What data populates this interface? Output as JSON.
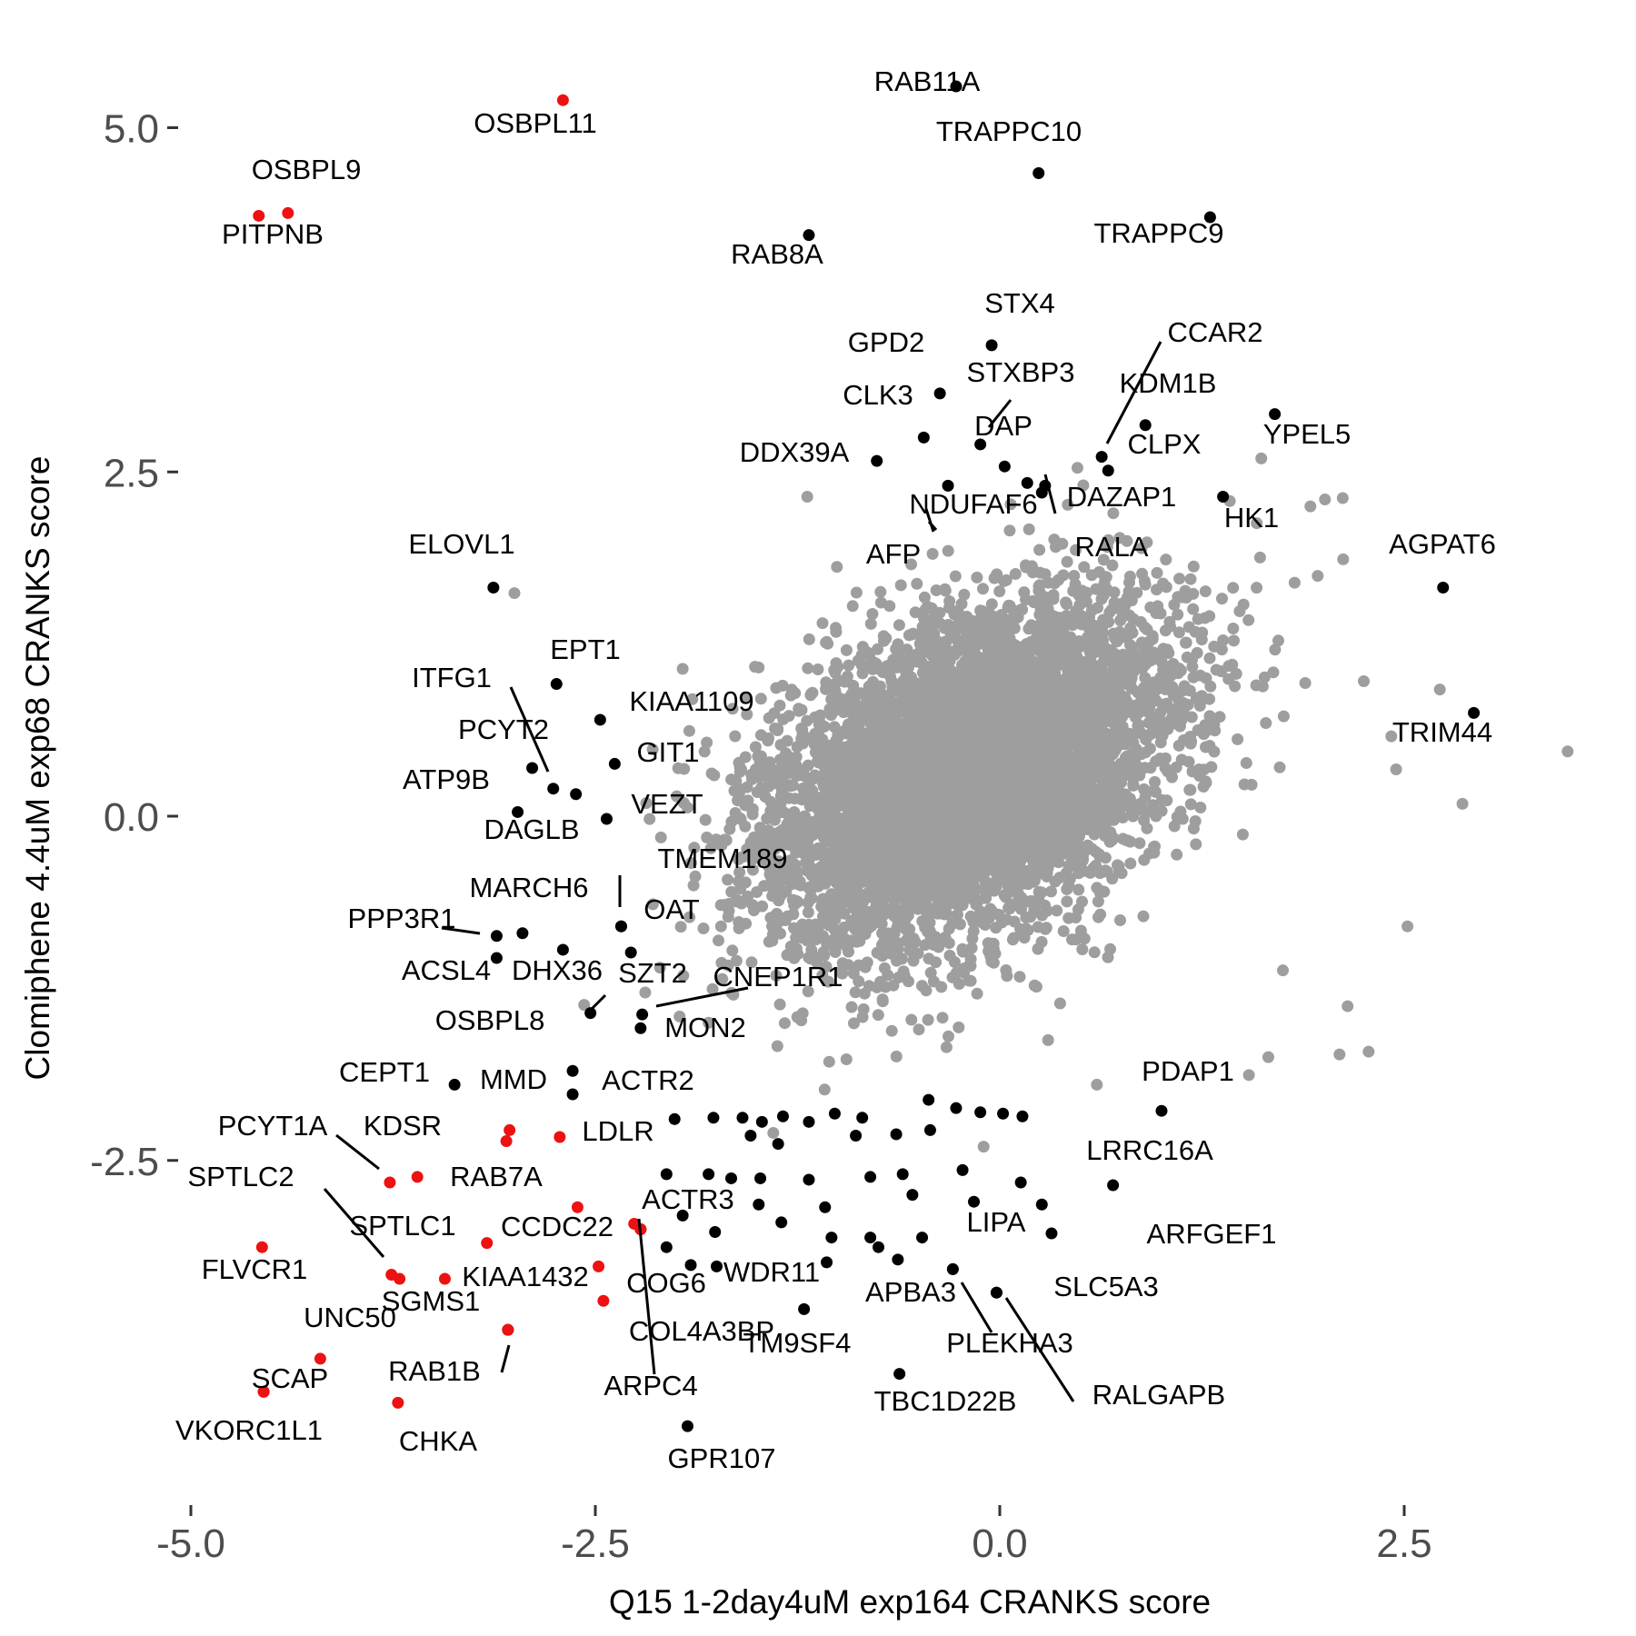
{
  "chart_data": {
    "type": "scatter",
    "xlabel": "Q15 1-2day4uM exp164 CRANKS score",
    "ylabel": "Clomiphene 4.4uM exp68 CRANKS score",
    "xlim": [
      -5.1,
      3.7
    ],
    "ylim": [
      -5.0,
      5.5
    ],
    "x_ticks": [
      -5.0,
      -2.5,
      0.0,
      2.5
    ],
    "x_tick_labels": [
      "-5.0",
      "-2.5",
      "0.0",
      "2.5"
    ],
    "y_ticks": [
      5.0,
      2.5,
      0.0,
      -2.5
    ],
    "y_tick_labels": [
      "5.0",
      "2.5",
      "0.0",
      "-2.5"
    ],
    "grid": false,
    "legend": "none",
    "colors": {
      "background": "#ffffff",
      "highlight": "#ee1111",
      "labeled": "#000000",
      "other": "#9e9e9e",
      "tick": "#4d4d4d"
    },
    "series": [
      {
        "group": "highlighted",
        "color": "#ee1111",
        "points": [
          {
            "label": "OSBPL11",
            "x": -2.7,
            "y": 5.2
          },
          {
            "label": "OSBPL9",
            "x": -4.4,
            "y": 4.38
          },
          {
            "label": "PITPNB",
            "x": -4.58,
            "y": 4.36
          },
          {
            "label": "",
            "x": -3.03,
            "y": -2.28
          },
          {
            "label": "",
            "x": -3.05,
            "y": -2.36
          },
          {
            "label": "LDLR",
            "x": -2.72,
            "y": -2.33
          },
          {
            "label": "KDSR",
            "x": -3.6,
            "y": -2.62
          },
          {
            "label": "PCYT1A",
            "x": -3.77,
            "y": -2.66
          },
          {
            "label": "RAB7A",
            "x": -2.61,
            "y": -2.84
          },
          {
            "label": "ACTR3",
            "x": -2.26,
            "y": -2.96
          },
          {
            "label": "",
            "x": -2.22,
            "y": -3.0
          },
          {
            "label": "CCDC22",
            "x": -3.17,
            "y": -3.1
          },
          {
            "label": "FLVCR1",
            "x": -4.56,
            "y": -3.13
          },
          {
            "label": "KIAA1432",
            "x": -2.48,
            "y": -3.27
          },
          {
            "label": "SPTLC1",
            "x": -3.76,
            "y": -3.33
          },
          {
            "label": "SPTLC2",
            "x": -3.71,
            "y": -3.36
          },
          {
            "label": "SGMS1",
            "x": -3.43,
            "y": -3.36
          },
          {
            "label": "COG6",
            "x": -2.45,
            "y": -3.52
          },
          {
            "label": "COL4A3BP",
            "x": -3.04,
            "y": -3.73
          },
          {
            "label": "UNC50",
            "x": -4.2,
            "y": -3.94
          },
          {
            "label": "SCAP",
            "x": -4.55,
            "y": -4.18
          },
          {
            "label": "CHKA",
            "x": -3.72,
            "y": -4.26
          }
        ]
      },
      {
        "group": "labeled",
        "color": "#000000",
        "points": [
          {
            "label": "RAB11A",
            "x": -0.27,
            "y": 5.3
          },
          {
            "label": "TRAPPC10",
            "x": 0.24,
            "y": 4.67
          },
          {
            "label": "TRAPPC9",
            "x": 1.3,
            "y": 4.35
          },
          {
            "label": "RAB8A",
            "x": -1.18,
            "y": 4.22
          },
          {
            "label": "STX4",
            "x": -0.05,
            "y": 3.42
          },
          {
            "label": "GPD2",
            "x": -0.37,
            "y": 3.07
          },
          {
            "label": "YPEL5",
            "x": 1.7,
            "y": 2.92
          },
          {
            "label": "KDM1B",
            "x": 0.9,
            "y": 2.84
          },
          {
            "label": "CLK3",
            "x": -0.47,
            "y": 2.75
          },
          {
            "label": "DAP",
            "x": -0.12,
            "y": 2.7
          },
          {
            "label": "CCAR2",
            "x": 0.63,
            "y": 2.61
          },
          {
            "label": "DDX39A",
            "x": -0.76,
            "y": 2.58
          },
          {
            "label": "STXBP3",
            "x": 0.03,
            "y": 2.54
          },
          {
            "label": "CLPX",
            "x": 0.67,
            "y": 2.51
          },
          {
            "label": "NDUFAF6",
            "x": -0.32,
            "y": 2.4
          },
          {
            "label": "",
            "x": 0.17,
            "y": 2.42
          },
          {
            "label": "DAZAP1",
            "x": 0.28,
            "y": 2.4
          },
          {
            "label": "RALA",
            "x": 0.26,
            "y": 2.35
          },
          {
            "label": "HK1",
            "x": 1.38,
            "y": 2.32
          },
          {
            "label": "AGPAT6",
            "x": 2.74,
            "y": 1.66
          },
          {
            "label": "ELOVL1",
            "x": -3.13,
            "y": 1.66
          },
          {
            "label": "EPT1",
            "x": -2.74,
            "y": 0.96
          },
          {
            "label": "TRIM44",
            "x": 2.93,
            "y": 0.75
          },
          {
            "label": "KIAA1109",
            "x": -2.47,
            "y": 0.7
          },
          {
            "label": "GIT1",
            "x": -2.38,
            "y": 0.38
          },
          {
            "label": "PCYT2",
            "x": -2.89,
            "y": 0.35
          },
          {
            "label": "ITFG1",
            "x": -2.76,
            "y": 0.2
          },
          {
            "label": "ATP9B",
            "x": -2.62,
            "y": 0.16
          },
          {
            "label": "DAGLB",
            "x": -2.98,
            "y": 0.03
          },
          {
            "label": "VEZT",
            "x": -2.43,
            "y": -0.02
          },
          {
            "label": "PPP3R1",
            "x": -3.11,
            "y": -0.87
          },
          {
            "label": "MARCH6",
            "x": -2.95,
            "y": -0.85
          },
          {
            "label": "OAT",
            "x": -2.34,
            "y": -0.8
          },
          {
            "label": "TMEM189",
            "x": -2.34,
            "y": -0.8
          },
          {
            "label": "DHX36",
            "x": -2.7,
            "y": -0.97
          },
          {
            "label": "",
            "x": -2.28,
            "y": -0.99
          },
          {
            "label": "ACSL4",
            "x": -3.11,
            "y": -1.03
          },
          {
            "label": "SZT2",
            "x": -2.53,
            "y": -1.43
          },
          {
            "label": "CNEP1R1",
            "x": -2.21,
            "y": -1.44
          },
          {
            "label": "MON2",
            "x": -2.22,
            "y": -1.54
          },
          {
            "label": "OSBPL8",
            "x": -2.64,
            "y": -1.85
          },
          {
            "label": "CEPT1",
            "x": -3.37,
            "y": -1.95
          },
          {
            "label": "MMD",
            "x": -2.64,
            "y": -2.02
          },
          {
            "label": "PDAP1",
            "x": 1.0,
            "y": -2.14
          },
          {
            "label": "LRRC16A",
            "x": 0.7,
            "y": -2.68
          },
          {
            "label": "LIPA",
            "x": -0.16,
            "y": -2.8
          },
          {
            "label": "ARFGEF1",
            "x": 0.32,
            "y": -3.03
          },
          {
            "label": "WDR11",
            "x": -1.75,
            "y": -3.27
          },
          {
            "label": "APBA3",
            "x": -0.29,
            "y": -3.29
          },
          {
            "label": "SLC5A3",
            "x": -0.02,
            "y": -3.46
          },
          {
            "label": "RALGAPB",
            "x": -0.02,
            "y": -3.46
          },
          {
            "label": "PLEKHA3",
            "x": -0.29,
            "y": -3.29
          },
          {
            "label": "TM9SF4",
            "x": -1.21,
            "y": -3.58
          },
          {
            "label": "ARPC4",
            "x": -2.22,
            "y": -3.0
          },
          {
            "label": "RAB1B",
            "x": -3.04,
            "y": -3.73
          },
          {
            "label": "TBC1D22B",
            "x": -0.62,
            "y": -4.05
          },
          {
            "label": "GPR107",
            "x": -1.93,
            "y": -4.43
          },
          {
            "label": "VKORC1L1",
            "x": -4.55,
            "y": -4.18
          },
          {
            "label": "",
            "x": -2.01,
            "y": -2.2
          },
          {
            "label": "",
            "x": -1.77,
            "y": -2.19
          },
          {
            "label": "",
            "x": -1.59,
            "y": -2.19
          },
          {
            "label": "",
            "x": -1.47,
            "y": -2.22
          },
          {
            "label": "",
            "x": -1.34,
            "y": -2.18
          },
          {
            "label": "",
            "x": -1.18,
            "y": -2.22
          },
          {
            "label": "",
            "x": -1.02,
            "y": -2.16
          },
          {
            "label": "",
            "x": -0.85,
            "y": -2.19
          },
          {
            "label": "",
            "x": -0.44,
            "y": -2.06
          },
          {
            "label": "",
            "x": -0.27,
            "y": -2.12
          },
          {
            "label": "",
            "x": -0.12,
            "y": -2.15
          },
          {
            "label": "",
            "x": 0.02,
            "y": -2.16
          },
          {
            "label": "",
            "x": 0.14,
            "y": -2.18
          },
          {
            "label": "",
            "x": -1.54,
            "y": -2.32
          },
          {
            "label": "",
            "x": -1.37,
            "y": -2.38
          },
          {
            "label": "",
            "x": -0.89,
            "y": -2.32
          },
          {
            "label": "",
            "x": -0.64,
            "y": -2.31
          },
          {
            "label": "",
            "x": -0.43,
            "y": -2.28
          },
          {
            "label": "",
            "x": -1.8,
            "y": -2.6
          },
          {
            "label": "",
            "x": -1.66,
            "y": -2.63
          },
          {
            "label": "",
            "x": -1.48,
            "y": -2.63
          },
          {
            "label": "",
            "x": -1.18,
            "y": -2.64
          },
          {
            "label": "",
            "x": -0.8,
            "y": -2.62
          },
          {
            "label": "",
            "x": -0.6,
            "y": -2.6
          },
          {
            "label": "",
            "x": -0.23,
            "y": -2.57
          },
          {
            "label": "",
            "x": 0.13,
            "y": -2.66
          },
          {
            "label": "",
            "x": -2.06,
            "y": -2.6
          },
          {
            "label": "",
            "x": -1.49,
            "y": -2.82
          },
          {
            "label": "",
            "x": -1.08,
            "y": -2.84
          },
          {
            "label": "",
            "x": -0.54,
            "y": -2.75
          },
          {
            "label": "",
            "x": 0.26,
            "y": -2.82
          },
          {
            "label": "",
            "x": -1.96,
            "y": -2.9
          },
          {
            "label": "",
            "x": -1.35,
            "y": -2.95
          },
          {
            "label": "",
            "x": -1.04,
            "y": -3.06
          },
          {
            "label": "",
            "x": -0.8,
            "y": -3.06
          },
          {
            "label": "",
            "x": -0.48,
            "y": -3.06
          },
          {
            "label": "",
            "x": -1.76,
            "y": -3.02
          },
          {
            "label": "",
            "x": -2.06,
            "y": -3.13
          },
          {
            "label": "",
            "x": -1.07,
            "y": -3.24
          },
          {
            "label": "",
            "x": -0.75,
            "y": -3.13
          },
          {
            "label": "",
            "x": -0.63,
            "y": -3.22
          },
          {
            "label": "",
            "x": -1.91,
            "y": -3.26
          }
        ]
      },
      {
        "group": "other",
        "color": "#9e9e9e",
        "distribution": {
          "n": 6000,
          "center_x": -0.2,
          "center_y": 0.3,
          "sd_x": 0.62,
          "sd_y": 0.62,
          "correlation": 0.38,
          "seed": 42
        },
        "points": [
          {
            "x": -3.0,
            "y": 1.62
          },
          {
            "x": 3.51,
            "y": 0.47
          },
          {
            "x": 2.86,
            "y": 0.09
          },
          {
            "x": 2.42,
            "y": 0.58
          },
          {
            "x": 2.45,
            "y": 0.34
          },
          {
            "x": 2.72,
            "y": 0.92
          },
          {
            "x": 2.25,
            "y": 0.98
          },
          {
            "x": 2.52,
            "y": -0.8
          },
          {
            "x": 2.01,
            "y": 2.3
          },
          {
            "x": 1.92,
            "y": 2.25
          },
          {
            "x": 2.12,
            "y": 2.31
          },
          {
            "x": 0.48,
            "y": 2.53
          },
          {
            "x": -1.19,
            "y": 2.32
          },
          {
            "x": 1.75,
            "y": -1.12
          },
          {
            "x": 1.54,
            "y": -1.88
          },
          {
            "x": 1.66,
            "y": -1.75
          },
          {
            "x": 2.15,
            "y": -1.38
          },
          {
            "x": 2.1,
            "y": -1.73
          },
          {
            "x": 2.28,
            "y": -1.71
          },
          {
            "x": -1.96,
            "y": 1.07
          },
          {
            "x": -1.9,
            "y": 0.85
          },
          {
            "x": -1.4,
            "y": -2.3
          },
          {
            "x": -1.8,
            "y": -1.5
          },
          {
            "x": -2.1,
            "y": -1.1
          },
          {
            "x": -0.1,
            "y": -2.4
          },
          {
            "x": 0.6,
            "y": -1.95
          }
        ]
      }
    ],
    "annotations": [
      "RAB11A",
      "TRAPPC10",
      "TRAPPC9",
      "RAB8A",
      "OSBPL11",
      "OSBPL9",
      "PITPNB",
      "STX4",
      "GPD2",
      "STXBP3",
      "CCAR2",
      "KDM1B",
      "CLK3",
      "DAP",
      "YPEL5",
      "DDX39A",
      "CLPX",
      "NDUFAF6",
      "DAZAP1",
      "HK1",
      "AFP",
      "RALA",
      "ELOVL1",
      "AGPAT6",
      "EPT1",
      "ITFG1",
      "KIAA1109",
      "PCYT2",
      "GIT1",
      "TRIM44",
      "ATP9B",
      "VEZT",
      "DAGLB",
      "TMEM189",
      "MARCH6",
      "OAT",
      "PPP3R1",
      "ACSL4",
      "DHX36",
      "SZT2",
      "CNEP1R1",
      "OSBPL8",
      "MON2",
      "CEPT1",
      "MMD",
      "ACTR2",
      "PDAP1",
      "PCYT1A",
      "KDSR",
      "LDLR",
      "LRRC16A",
      "SPTLC2",
      "RAB7A",
      "ACTR3",
      "SPTLC1",
      "CCDC22",
      "LIPA",
      "ARFGEF1",
      "FLVCR1",
      "KIAA1432",
      "COG6",
      "WDR11",
      "SGMS1",
      "APBA3",
      "SLC5A3",
      "UNC50",
      "COL4A3BP",
      "TM9SF4",
      "PLEKHA3",
      "RAB1B",
      "SCAP",
      "ARPC4",
      "RALGAPB",
      "TBC1D22B",
      "VKORC1L1",
      "CHKA",
      "GPR107"
    ]
  }
}
